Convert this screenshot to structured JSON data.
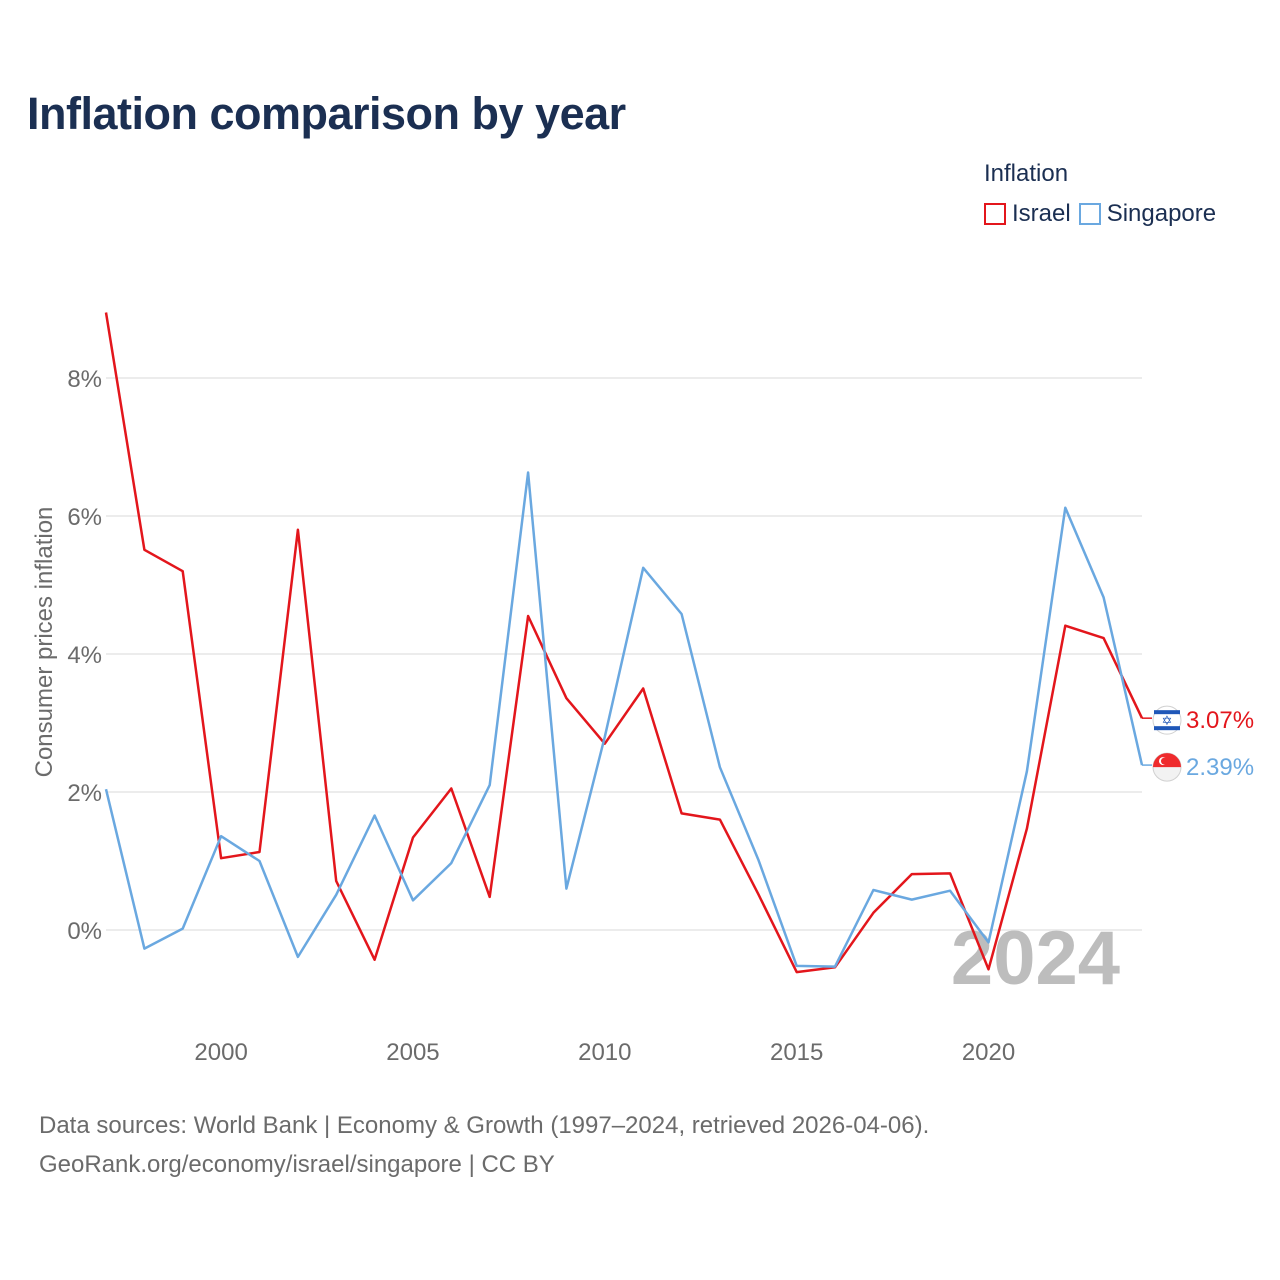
{
  "title": "Inflation comparison by year",
  "legend": {
    "title": "Inflation",
    "items": [
      {
        "name": "Israel",
        "color": "#e3161c"
      },
      {
        "name": "Singapore",
        "color": "#6aa8e0"
      }
    ]
  },
  "footer": {
    "line1": "Data sources: World Bank | Economy & Growth (1997–2024, retrieved 2026-04-06).",
    "line2": "GeoRank.org/economy/israel/singapore | CC BY"
  },
  "year_watermark": "2024",
  "chart_data": {
    "type": "line",
    "title": "Inflation comparison by year",
    "ylabel": "Consumer prices inflation",
    "xlabel": "",
    "xlim": [
      1997,
      2024
    ],
    "ylim": [
      -1.2,
      9.0
    ],
    "x_ticks": [
      2000,
      2005,
      2010,
      2015,
      2020
    ],
    "y_ticks": [
      0,
      2,
      4,
      6,
      8
    ],
    "y_tick_labels": [
      "0%",
      "2%",
      "4%",
      "6%",
      "8%"
    ],
    "x": [
      1997,
      1998,
      1999,
      2000,
      2001,
      2002,
      2003,
      2004,
      2005,
      2006,
      2007,
      2008,
      2009,
      2010,
      2011,
      2012,
      2013,
      2014,
      2015,
      2016,
      2017,
      2018,
      2019,
      2020,
      2021,
      2022,
      2023,
      2024
    ],
    "series": [
      {
        "name": "Israel",
        "color": "#e3161c",
        "values": [
          8.95,
          5.51,
          5.2,
          1.04,
          1.13,
          5.8,
          0.71,
          -0.43,
          1.34,
          2.05,
          0.48,
          4.55,
          3.36,
          2.7,
          3.5,
          1.69,
          1.6,
          0.52,
          -0.61,
          -0.54,
          0.25,
          0.81,
          0.82,
          -0.57,
          1.47,
          4.41,
          4.23,
          3.07
        ],
        "end_label": "3.07%"
      },
      {
        "name": "Singapore",
        "color": "#6aa8e0",
        "values": [
          2.04,
          -0.27,
          0.02,
          1.36,
          1.0,
          -0.39,
          0.51,
          1.66,
          0.43,
          0.97,
          2.1,
          6.63,
          0.6,
          2.8,
          5.25,
          4.58,
          2.36,
          1.02,
          -0.52,
          -0.53,
          0.58,
          0.44,
          0.57,
          -0.18,
          2.3,
          6.12,
          4.82,
          2.39
        ],
        "end_label": "2.39%"
      }
    ]
  }
}
